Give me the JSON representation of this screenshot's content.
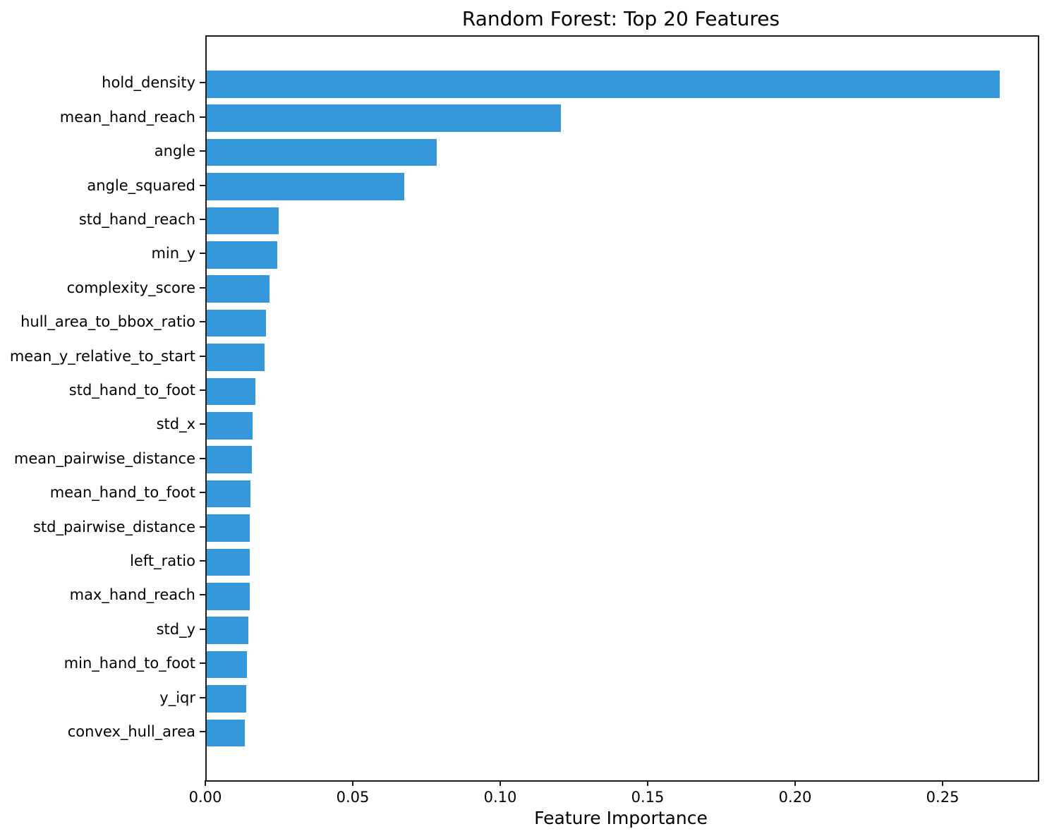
{
  "chart_data": {
    "type": "bar",
    "orientation": "horizontal",
    "title": "Random Forest: Top 20 Features",
    "xlabel": "Feature Importance",
    "ylabel": "",
    "xlim": [
      0,
      0.2818
    ],
    "grid": false,
    "legend": null,
    "bar_color": "#3498db",
    "spine_color": "#1c1c1c",
    "categories": [
      "hold_density",
      "mean_hand_reach",
      "angle",
      "angle_squared",
      "std_hand_reach",
      "min_y",
      "complexity_score",
      "hull_area_to_bbox_ratio",
      "mean_y_relative_to_start",
      "std_hand_to_foot",
      "std_x",
      "mean_pairwise_distance",
      "mean_hand_to_foot",
      "std_pairwise_distance",
      "left_ratio",
      "max_hand_reach",
      "std_y",
      "min_hand_to_foot",
      "y_iqr",
      "convex_hull_area"
    ],
    "values": [
      0.269,
      0.12,
      0.078,
      0.067,
      0.0243,
      0.024,
      0.0213,
      0.0202,
      0.0195,
      0.0164,
      0.0155,
      0.0153,
      0.0149,
      0.0147,
      0.0145,
      0.0145,
      0.0142,
      0.0137,
      0.0134,
      0.0129
    ],
    "xticks": [
      {
        "value": 0.0,
        "label": "0.00"
      },
      {
        "value": 0.05,
        "label": "0.05"
      },
      {
        "value": 0.1,
        "label": "0.10"
      },
      {
        "value": 0.15,
        "label": "0.15"
      },
      {
        "value": 0.2,
        "label": "0.20"
      },
      {
        "value": 0.25,
        "label": "0.25"
      }
    ]
  }
}
